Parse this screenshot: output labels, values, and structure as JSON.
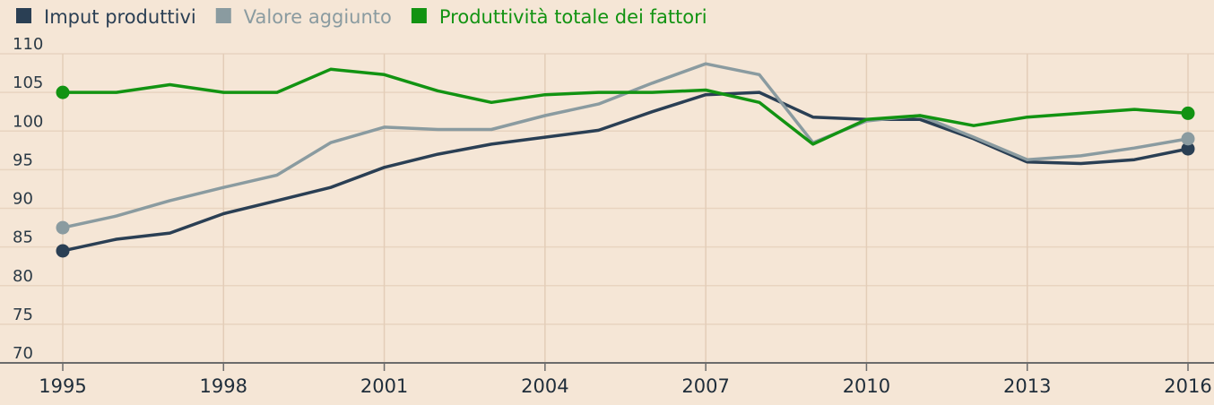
{
  "chart_data": {
    "type": "line",
    "title": "",
    "xlabel": "",
    "ylabel": "",
    "x": [
      1995,
      1996,
      1997,
      1998,
      1999,
      2000,
      2001,
      2002,
      2003,
      2004,
      2005,
      2006,
      2007,
      2008,
      2009,
      2010,
      2011,
      2012,
      2013,
      2014,
      2015,
      2016
    ],
    "xlim": [
      1995,
      2016
    ],
    "ylim": [
      70,
      110
    ],
    "xticks": [
      "1995",
      "1998",
      "2001",
      "2004",
      "2007",
      "2010",
      "2013",
      "2016"
    ],
    "yticks": [
      "70",
      "75",
      "80",
      "85",
      "90",
      "95",
      "100",
      "105",
      "110"
    ],
    "grid": true,
    "legend_position": "top-left",
    "series": [
      {
        "name": "Imput produttivi",
        "color": "#2a3f54",
        "values": [
          84.5,
          86.0,
          86.8,
          89.3,
          91.0,
          92.7,
          95.3,
          97.0,
          98.3,
          99.2,
          100.1,
          102.5,
          104.7,
          105.0,
          101.8,
          101.5,
          101.5,
          99.0,
          96.0,
          95.8,
          96.3,
          97.7
        ]
      },
      {
        "name": "Valore aggiunto",
        "color": "#8a9ba0",
        "values": [
          87.5,
          89.0,
          91.0,
          92.7,
          94.3,
          98.5,
          100.5,
          100.2,
          100.2,
          102.0,
          103.5,
          106.2,
          108.7,
          107.3,
          98.5,
          101.3,
          102.0,
          99.2,
          96.3,
          96.8,
          97.8,
          99.0
        ]
      },
      {
        "name": "Produttività totale dei fattori",
        "color": "#129312",
        "values": [
          105.0,
          105.0,
          106.0,
          105.0,
          105.0,
          108.0,
          107.3,
          105.2,
          103.7,
          104.7,
          105.0,
          105.0,
          105.3,
          103.7,
          98.3,
          101.5,
          102.0,
          100.7,
          101.8,
          102.3,
          102.8,
          102.3
        ]
      }
    ]
  }
}
